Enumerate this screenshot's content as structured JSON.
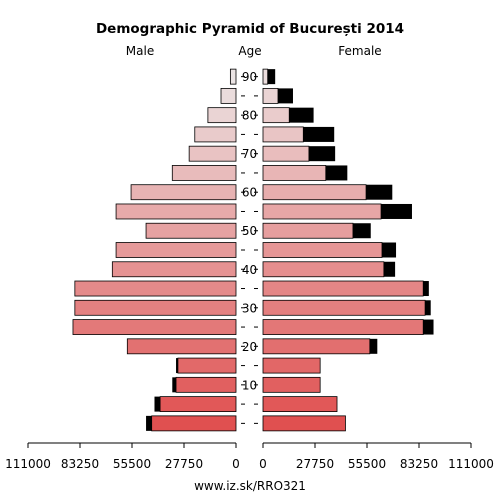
{
  "chart_data": {
    "type": "bar",
    "title": "Demographic Pyramid of București 2014",
    "left_label": "Male",
    "center_label": "Age",
    "right_label": "Female",
    "footer": "www.iz.sk/RRO321",
    "age_axis_ticks": [
      "10",
      "20",
      "30",
      "40",
      "50",
      "60",
      "70",
      "80",
      "90"
    ],
    "value_axis_ticks": [
      "111000",
      "83250",
      "55500",
      "27750",
      "0"
    ],
    "value_axis_range": [
      0,
      111000
    ],
    "age_groups": [
      "0-4",
      "5-9",
      "10-14",
      "15-19",
      "20-24",
      "25-29",
      "30-34",
      "35-39",
      "40-44",
      "45-49",
      "50-54",
      "55-59",
      "60-64",
      "65-69",
      "70-74",
      "75-79",
      "80-84",
      "85-89",
      "90+"
    ],
    "series": [
      {
        "name": "Male",
        "values": [
          45000,
          40500,
          32000,
          31000,
          58000,
          87000,
          86000,
          86000,
          66000,
          64000,
          48000,
          64000,
          56000,
          34000,
          25000,
          22000,
          15000,
          8000,
          3000
        ],
        "excess": [
          3000,
          3000,
          2000,
          1000,
          0,
          0,
          0,
          0,
          0,
          0,
          0,
          0,
          0,
          0,
          0,
          0,
          0,
          0,
          0
        ]
      },
      {
        "name": "Female",
        "values": [
          44000,
          39500,
          30500,
          30500,
          57000,
          85500,
          86500,
          85500,
          64500,
          63500,
          48000,
          63000,
          55000,
          33500,
          24500,
          21500,
          14000,
          8000,
          2500
        ],
        "excess": [
          0,
          0,
          0,
          0,
          4000,
          5500,
          3000,
          3000,
          6000,
          7500,
          9500,
          16500,
          14000,
          11500,
          14000,
          16500,
          13000,
          8000,
          4000
        ]
      }
    ]
  }
}
